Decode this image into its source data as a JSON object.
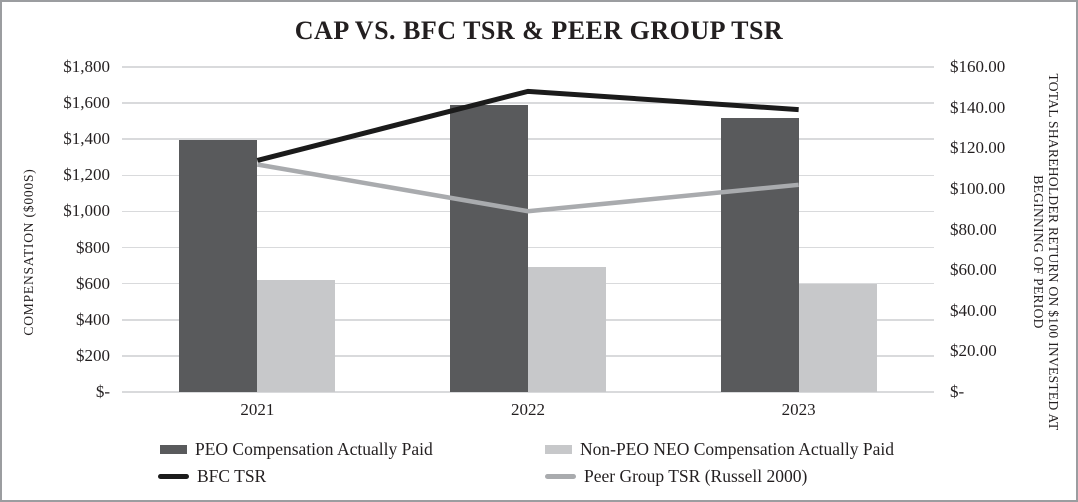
{
  "title": "CAP VS. BFC TSR & PEER GROUP TSR",
  "chart_data": {
    "type": "combo-bar-line",
    "categories": [
      "2021",
      "2022",
      "2023"
    ],
    "bar_series": [
      {
        "name": "PEO Compensation Actually Paid",
        "axis": "left",
        "color": "#595a5c",
        "values": [
          1395,
          1590,
          1515
        ]
      },
      {
        "name": "Non-PEO NEO Compensation Actually Paid",
        "axis": "left",
        "color": "#c7c8ca",
        "values": [
          620,
          695,
          600
        ]
      }
    ],
    "line_series": [
      {
        "name": "BFC TSR",
        "axis": "right",
        "color": "#1b1b1b",
        "stroke_width": 5,
        "values": [
          114,
          148,
          139
        ]
      },
      {
        "name": "Peer Group TSR (Russell 2000)",
        "axis": "right",
        "color": "#a9abae",
        "stroke_width": 4.5,
        "values": [
          112,
          89,
          102
        ]
      }
    ],
    "left_axis": {
      "title": "COMPENSATION ($000S)",
      "min": 0,
      "max": 1800,
      "step": 200,
      "tick_labels": [
        "$-",
        "$200",
        "$400",
        "$600",
        "$800",
        "$1,000",
        "$1,200",
        "$1,400",
        "$1,600",
        "$1,800"
      ]
    },
    "right_axis": {
      "title_line1": "TOTAL SHAREHOLDER RETURN ON $100 INVESTED AT",
      "title_line2": "BEGINNING OF PERIOD",
      "min": 0,
      "max": 160,
      "step": 20,
      "tick_labels": [
        "$-",
        "$20.00",
        "$40.00",
        "$60.00",
        "$80.00",
        "$100.00",
        "$120.00",
        "$140.00",
        "$160.00"
      ]
    },
    "grid": true,
    "legend_position": "bottom"
  }
}
